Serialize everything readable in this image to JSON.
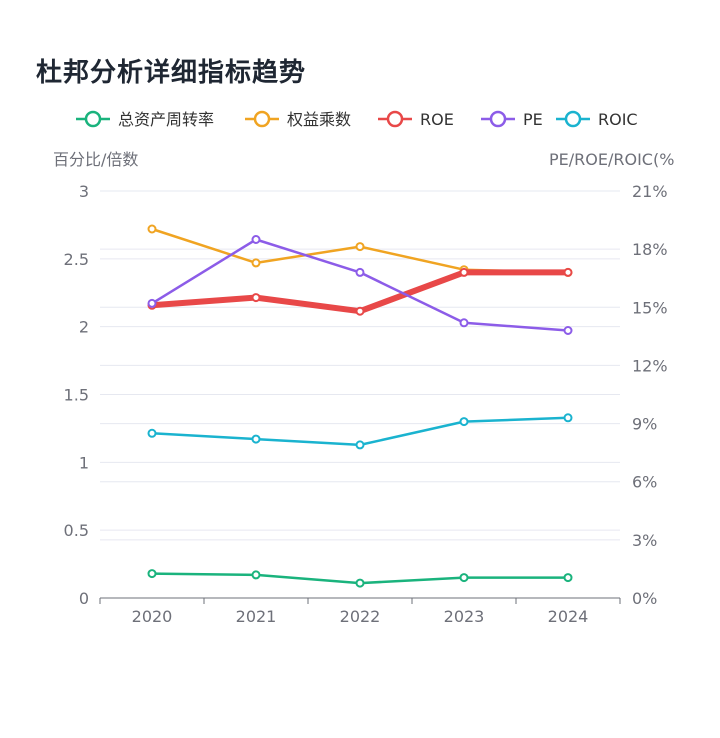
{
  "title": "杜邦分析详细指标趋势",
  "chart_data": {
    "type": "line",
    "categories": [
      "2020",
      "2021",
      "2022",
      "2023",
      "2024"
    ],
    "y_left": {
      "label": "百分比/倍数",
      "min": 0,
      "max": 3,
      "ticks": [
        "0",
        "0.5",
        "1",
        "1.5",
        "2",
        "2.5",
        "3"
      ]
    },
    "y_right": {
      "label": "PE/ROE/ROIC(%",
      "min": 0,
      "max": 21,
      "ticks": [
        "0%",
        "3%",
        "6%",
        "9%",
        "12%",
        "15%",
        "18%",
        "21%"
      ]
    },
    "grid": true,
    "legend_position": "top",
    "series": [
      {
        "name": "总资产周转率",
        "color": "#1ab37d",
        "axis": "left",
        "width": 2.5,
        "values": [
          0.18,
          0.17,
          0.11,
          0.15,
          0.15
        ]
      },
      {
        "name": "权益乘数",
        "color": "#f0a422",
        "axis": "left",
        "width": 2.5,
        "values": [
          2.72,
          2.47,
          2.59,
          2.42,
          2.4
        ]
      },
      {
        "name": "ROE",
        "color": "#e84848",
        "axis": "right",
        "width": 6,
        "values": [
          15.1,
          15.5,
          14.8,
          16.8,
          16.8
        ]
      },
      {
        "name": "PE",
        "color": "#8c5ce8",
        "axis": "right",
        "width": 2.5,
        "values": [
          15.2,
          18.5,
          16.8,
          14.2,
          13.8
        ]
      },
      {
        "name": "ROIC",
        "color": "#1ab3cf",
        "axis": "right",
        "width": 2.5,
        "values": [
          8.5,
          8.2,
          7.9,
          9.1,
          9.3
        ]
      }
    ]
  }
}
